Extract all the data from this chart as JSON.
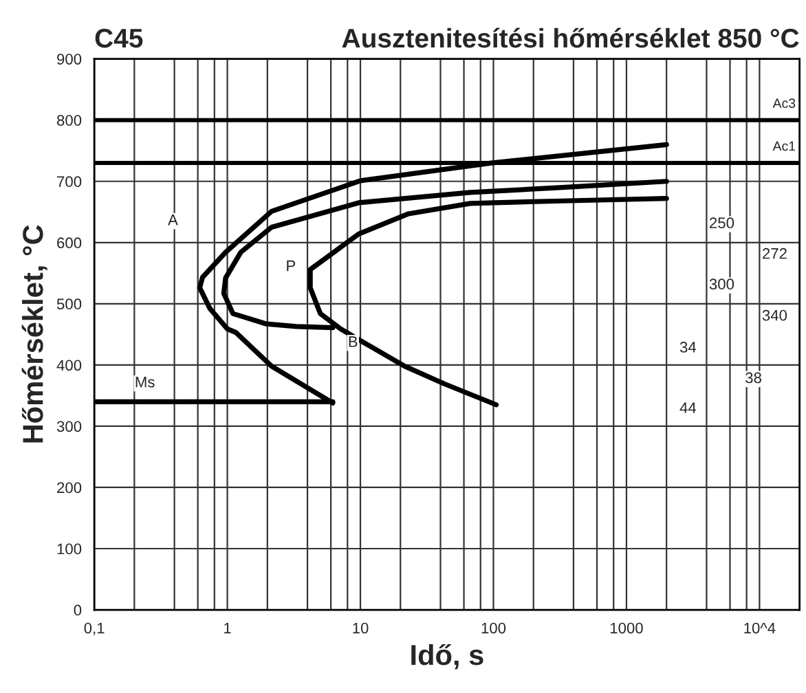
{
  "chart_data": {
    "type": "line",
    "title": "C45",
    "subtitle": "Ausztenitesítési hőmérséklet 850 °C",
    "xlabel": "Idő, s",
    "ylabel": "Hőmérséklet, °C",
    "log": "x",
    "grid": true,
    "marker": "none",
    "line_style": "solid",
    "xlim": [
      0.1,
      20000
    ],
    "ylim": [
      0,
      900
    ],
    "xticks": [
      {
        "value": 0.1,
        "label": "0,1"
      },
      1,
      10,
      100,
      1000,
      {
        "value": 10000,
        "label": "10^4"
      },
      {
        "value": 0.2,
        "label": null
      },
      {
        "value": 0.4,
        "label": null
      },
      {
        "value": 0.6,
        "label": null
      },
      {
        "value": 0.8,
        "label": null
      },
      {
        "value": 2,
        "label": null
      },
      {
        "value": 4,
        "label": null
      },
      {
        "value": 6,
        "label": null
      },
      {
        "value": 8,
        "label": null
      },
      {
        "value": 20,
        "label": null
      },
      {
        "value": 40,
        "label": null
      },
      {
        "value": 60,
        "label": null
      },
      {
        "value": 80,
        "label": null
      },
      {
        "value": 200,
        "label": null
      },
      {
        "value": 400,
        "label": null
      },
      {
        "value": 600,
        "label": null
      },
      {
        "value": 800,
        "label": null
      },
      {
        "value": 2000,
        "label": null
      },
      {
        "value": 4000,
        "label": null
      },
      {
        "value": 6000,
        "label": null
      },
      {
        "value": 8000,
        "label": null
      }
    ],
    "yticks": [
      0,
      100,
      200,
      300,
      400,
      500,
      600,
      700,
      800,
      900
    ],
    "series": [
      {
        "color": "#000000",
        "x": [
          2000,
          96,
          10,
          2.15,
          0.97,
          0.65,
          0.62,
          0.74,
          1.0,
          1.16,
          2.15,
          6.2
        ],
        "values": [
          760,
          730,
          701,
          651,
          584,
          543,
          526,
          492,
          459,
          453,
          398,
          338
        ]
      },
      {
        "color": "#000000",
        "x": [
          2000,
          330,
          67,
          9.7,
          2.15,
          1.26,
          0.97,
          0.94,
          1.1,
          1.97,
          3.3,
          6.2
        ],
        "values": [
          700,
          690,
          682,
          665,
          625,
          584,
          542,
          517,
          484,
          467,
          463,
          461
        ]
      },
      {
        "color": "#000000",
        "x": [
          2000,
          330,
          67,
          23,
          9.7,
          5.7,
          4.2,
          4.2,
          5.0,
          7.1,
          10,
          21.5,
          43,
          105
        ],
        "values": [
          672,
          668,
          664,
          647,
          614,
          577,
          556,
          526,
          484,
          459,
          440,
          398,
          369,
          335
        ]
      },
      {
        "color": "#000000",
        "x": [
          0.1,
          6.2
        ],
        "values": [
          340,
          340
        ]
      }
    ],
    "ref_lines": [
      {
        "axis": "y",
        "value": 800,
        "label": "Ac3",
        "color": "#000000"
      },
      {
        "axis": "y",
        "value": 730,
        "label": "Ac1",
        "color": "#000000"
      }
    ],
    "annotations": [
      {
        "text": "A",
        "x": 0.39,
        "y": 635
      },
      {
        "text": "P",
        "x": 3.0,
        "y": 560
      },
      {
        "text": "B",
        "x": 8.8,
        "y": 436
      },
      {
        "text": "Ms",
        "x": 0.24,
        "y": 370
      },
      {
        "text": "250",
        "x": 5200,
        "y": 630
      },
      {
        "text": "272",
        "x": 13000,
        "y": 580
      },
      {
        "text": "300",
        "x": 5200,
        "y": 530
      },
      {
        "text": "340",
        "x": 13000,
        "y": 479
      },
      {
        "text": "34",
        "x": 2900,
        "y": 427
      },
      {
        "text": "38",
        "x": 9000,
        "y": 377
      },
      {
        "text": "44",
        "x": 2900,
        "y": 328
      }
    ]
  }
}
